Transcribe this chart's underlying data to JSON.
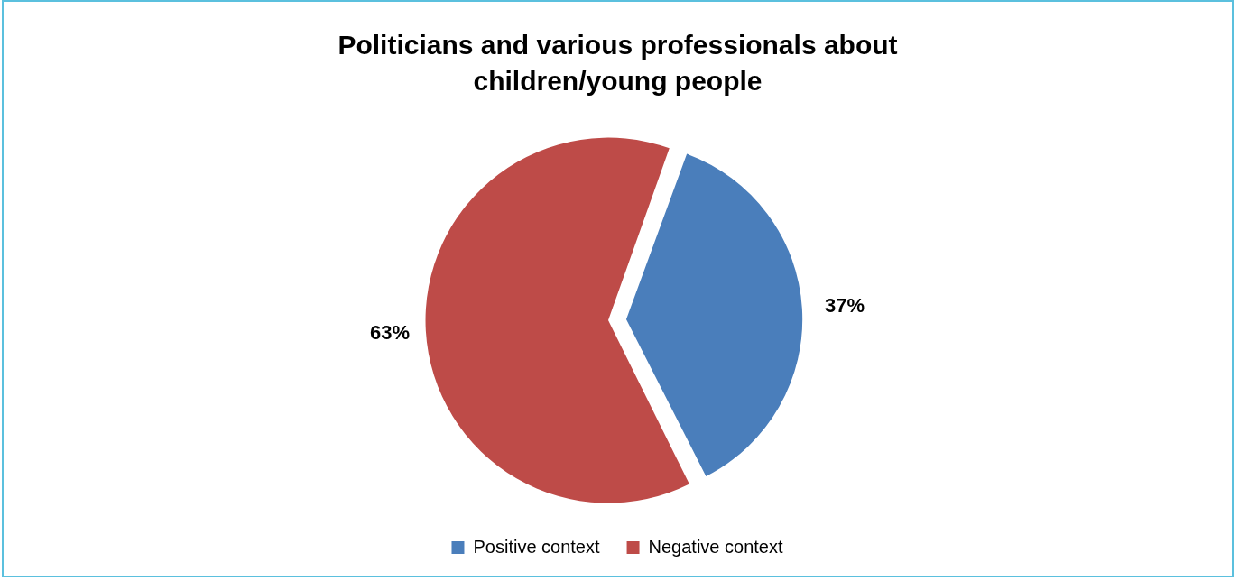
{
  "chart_data": {
    "type": "pie",
    "title": "Politicians and various professionals about children/young people",
    "categories": [
      "Positive context",
      "Negative context"
    ],
    "values": [
      37,
      63
    ],
    "colors": [
      "#4a7ebb",
      "#be4b48"
    ],
    "value_labels": [
      "37%",
      "63%"
    ],
    "legend": "bottom"
  }
}
